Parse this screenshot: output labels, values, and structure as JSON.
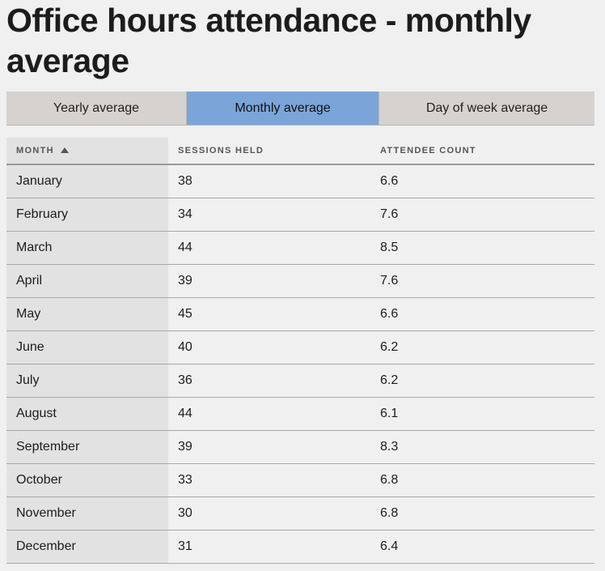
{
  "title": "Office hours attendance - monthly average",
  "tabs": [
    {
      "label": "Yearly average",
      "active": false
    },
    {
      "label": "Monthly average",
      "active": true
    },
    {
      "label": "Day of week average",
      "active": false
    }
  ],
  "colors": {
    "active_tab": "#7ba5d9",
    "inactive_tab": "#d6d2cf",
    "first_column_bg": "#e2e2e2",
    "page_bg": "#f0f0f0"
  },
  "table": {
    "headers": {
      "month": "MONTH",
      "sessions": "SESSIONS HELD",
      "attendees": "ATTENDEE COUNT"
    },
    "sort": {
      "column": "month",
      "direction": "ascending",
      "icon": "sort-ascending-triangle-icon"
    },
    "rows": [
      {
        "month": "January",
        "sessions": "38",
        "attendees": "6.6"
      },
      {
        "month": "February",
        "sessions": "34",
        "attendees": "7.6"
      },
      {
        "month": "March",
        "sessions": "44",
        "attendees": "8.5"
      },
      {
        "month": "April",
        "sessions": "39",
        "attendees": "7.6"
      },
      {
        "month": "May",
        "sessions": "45",
        "attendees": "6.6"
      },
      {
        "month": "June",
        "sessions": "40",
        "attendees": "6.2"
      },
      {
        "month": "July",
        "sessions": "36",
        "attendees": "6.2"
      },
      {
        "month": "August",
        "sessions": "44",
        "attendees": "6.1"
      },
      {
        "month": "September",
        "sessions": "39",
        "attendees": "8.3"
      },
      {
        "month": "October",
        "sessions": "33",
        "attendees": "6.8"
      },
      {
        "month": "November",
        "sessions": "30",
        "attendees": "6.8"
      },
      {
        "month": "December",
        "sessions": "31",
        "attendees": "6.4"
      }
    ]
  }
}
